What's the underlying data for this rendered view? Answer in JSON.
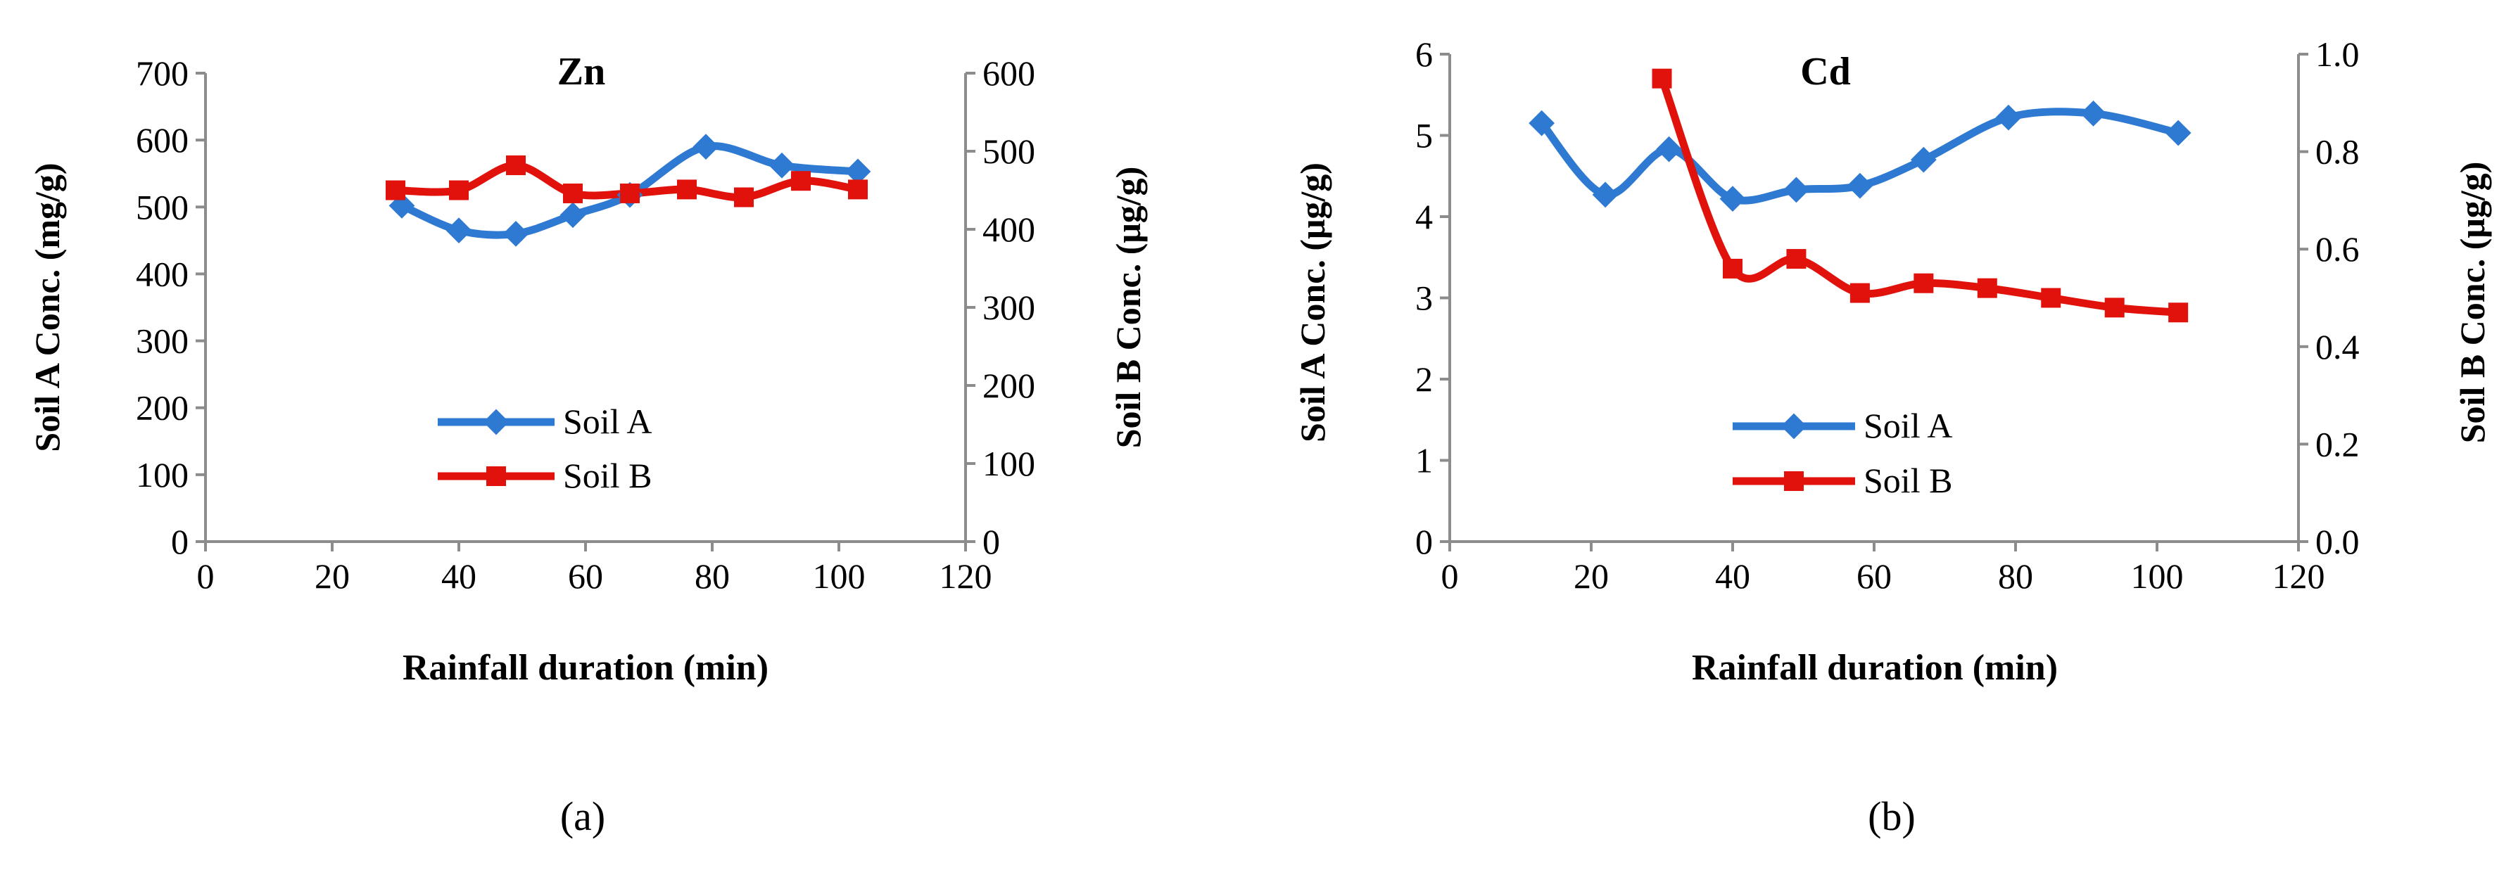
{
  "colors": {
    "soil_a": "#2E79D1",
    "soil_b": "#E0120B",
    "axis": "#8C8C8C",
    "text": "#000000"
  },
  "chart_data": [
    {
      "type": "line",
      "title": "Zn",
      "panel_label": "(a)",
      "xlabel": "Rainfall duration (min)",
      "ylabel": "Soil A Conc. (mg/g)",
      "y2label": "Soil B Conc. (μg/g)",
      "xlim": [
        0,
        120
      ],
      "ylim": [
        0,
        700
      ],
      "y2lim": [
        0,
        600
      ],
      "xticks": [
        "0",
        "20",
        "40",
        "60",
        "80",
        "100",
        "120"
      ],
      "yticks": [
        "0",
        "100",
        "200",
        "300",
        "400",
        "500",
        "600",
        "700"
      ],
      "y2ticks": [
        "0",
        "100",
        "200",
        "300",
        "400",
        "500",
        "600"
      ],
      "legend_position": "center",
      "series": [
        {
          "name": "Soil A",
          "axis": "left",
          "marker": "diamond",
          "x": [
            31,
            40,
            49,
            58,
            67,
            79,
            91,
            103
          ],
          "y": [
            502,
            465,
            460,
            488,
            518,
            590,
            562,
            553
          ]
        },
        {
          "name": "Soil B",
          "axis": "right",
          "marker": "square",
          "x": [
            30,
            40,
            49,
            58,
            67,
            76,
            85,
            94,
            103
          ],
          "y": [
            450,
            450,
            482,
            446,
            446,
            451,
            441,
            462,
            451
          ]
        }
      ]
    },
    {
      "type": "line",
      "title": "Cd",
      "panel_label": "(b)",
      "xlabel": "Rainfall duration (min)",
      "ylabel": "Soil A Conc. (μg/g)",
      "y2label": "Soil B Conc. (μg/g)",
      "xlim": [
        0,
        120
      ],
      "ylim": [
        0,
        6
      ],
      "y2lim": [
        0,
        1
      ],
      "xticks": [
        "0",
        "20",
        "40",
        "60",
        "80",
        "100",
        "120"
      ],
      "yticks": [
        "0",
        "1",
        "2",
        "3",
        "4",
        "5",
        "6"
      ],
      "y2ticks": [
        "0.0",
        "0.2",
        "0.4",
        "0.6",
        "0.8",
        "1.0"
      ],
      "legend_position": "center",
      "series": [
        {
          "name": "Soil A",
          "axis": "left",
          "marker": "diamond",
          "x": [
            13,
            22,
            31,
            40,
            49,
            58,
            67,
            79,
            91,
            103
          ],
          "y": [
            5.15,
            4.27,
            4.83,
            4.22,
            4.33,
            4.38,
            4.7,
            5.22,
            5.27,
            5.03
          ]
        },
        {
          "name": "Soil B",
          "axis": "right",
          "marker": "square",
          "x": [
            30,
            40,
            49,
            58,
            67,
            76,
            85,
            94,
            103
          ],
          "y": [
            0.95,
            0.56,
            0.58,
            0.51,
            0.53,
            0.52,
            0.5,
            0.48,
            0.47
          ]
        }
      ]
    }
  ]
}
